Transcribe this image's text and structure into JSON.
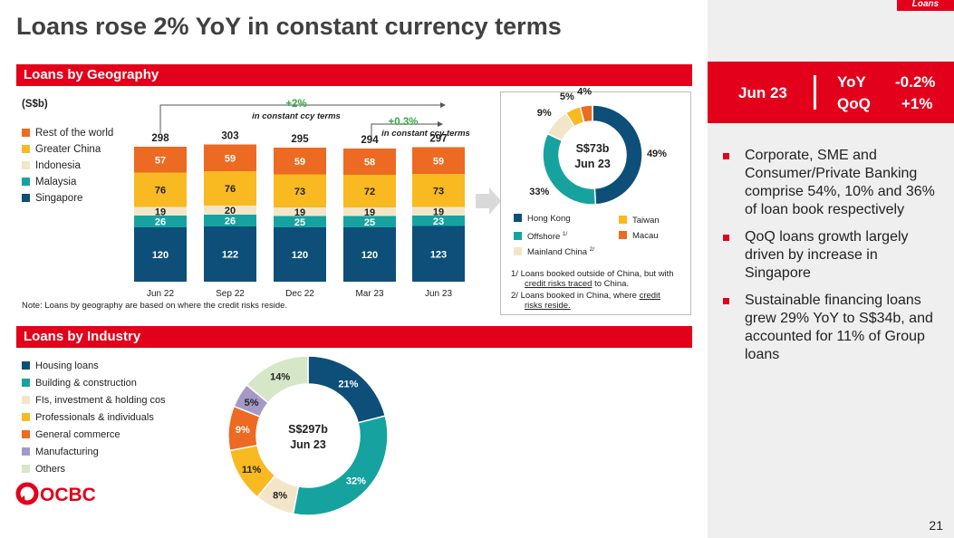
{
  "page": {
    "title": "Loans rose 2% YoY in constant currency terms",
    "tag": "Loans",
    "page_number": "21"
  },
  "geo": {
    "section_title": "Loans by Geography",
    "unit": "(S$b)",
    "note": "Note: Loans by geography are based on where the credit risks reside.",
    "growth_yoy": {
      "pct": "+2%",
      "text": "in constant ccy terms"
    },
    "growth_qoq": {
      "pct": "+0.3%",
      "text": "in constant ccy terms"
    },
    "donut_center": {
      "amount": "S$73b",
      "date": "Jun 23"
    },
    "donut_legend": {
      "hk": "Hong Kong",
      "taiwan": "Taiwan",
      "offshore": "Offshore",
      "offshore_sup": "1/",
      "macau": "Macau",
      "mainland": "Mainland China",
      "mainland_sup": "2/"
    },
    "footnote1": {
      "num": "1/",
      "l1": "Loans booked outside of China, but with",
      "l2u": "credit risks traced",
      "l2r": " to China."
    },
    "footnote2": {
      "num": "2/",
      "l1": "Loans booked in China, where ",
      "l1u": "credit",
      "l2u": "risks reside."
    }
  },
  "industry": {
    "section_title": "Loans by Industry",
    "donut_center": {
      "amount": "S$297b",
      "date": "Jun 23"
    }
  },
  "kpi": {
    "date": "Jun 23",
    "yoy_label": "YoY",
    "yoy_value": "-0.2%",
    "qoq_label": "QoQ",
    "qoq_value": "+1%"
  },
  "bullets": [
    "Corporate, SME and Consumer/Private Banking comprise 54%, 10% and 36% of loan book respectively",
    "QoQ loans growth largely driven by increase in Singapore",
    "Sustainable financing loans grew 29% YoY to S$34b, and accounted for 11% of Group loans"
  ],
  "logo": {
    "text": "OCBC"
  },
  "colors": {
    "red": "#e3001b",
    "navy": "#0d4f78",
    "teal": "#16a3a0",
    "beige": "#f3e6c8",
    "yellow": "#f8b921",
    "orange": "#ec6a22",
    "purple": "#a59ac7",
    "lightgreen": "#d6e7c8"
  },
  "chart_data": [
    {
      "type": "bar",
      "stacked": true,
      "title": "Loans by Geography",
      "ylabel": "(S$b)",
      "categories": [
        "Jun 22",
        "Sep 22",
        "Dec 22",
        "Mar 23",
        "Jun 23"
      ],
      "totals": [
        298,
        303,
        295,
        294,
        297
      ],
      "series": [
        {
          "name": "Singapore",
          "color": "#0d4f78",
          "values": [
            120,
            122,
            120,
            120,
            123
          ]
        },
        {
          "name": "Malaysia",
          "color": "#16a3a0",
          "values": [
            26,
            26,
            25,
            25,
            23
          ]
        },
        {
          "name": "Indonesia",
          "color": "#f3e6c8",
          "values": [
            19,
            20,
            19,
            19,
            19
          ]
        },
        {
          "name": "Greater China",
          "color": "#f8b921",
          "values": [
            76,
            76,
            73,
            72,
            73
          ]
        },
        {
          "name": "Rest of the world",
          "color": "#ec6a22",
          "values": [
            57,
            59,
            59,
            58,
            59
          ]
        }
      ],
      "legend_order": [
        "Rest of the world",
        "Greater China",
        "Indonesia",
        "Malaysia",
        "Singapore"
      ],
      "legend": "top-left"
    },
    {
      "type": "pie",
      "donut": true,
      "slices": [
        {
          "name": "Hong Kong",
          "value": 49,
          "label": "49%",
          "color": "#0d4f78"
        },
        {
          "name": "Offshore",
          "value": 33,
          "label": "33%",
          "color": "#16a3a0"
        },
        {
          "name": "Mainland China",
          "value": 9,
          "label": "9%",
          "color": "#f3e6c8"
        },
        {
          "name": "Taiwan",
          "value": 5,
          "label": "5%",
          "color": "#f8b921"
        },
        {
          "name": "Macau",
          "value": 4,
          "label": "4%",
          "color": "#ec6a22"
        }
      ]
    },
    {
      "type": "pie",
      "donut": true,
      "title": "Loans by Industry",
      "slices": [
        {
          "name": "Housing loans",
          "value": 21,
          "label": "21%",
          "color": "#0d4f78"
        },
        {
          "name": "Building & construction",
          "value": 32,
          "label": "32%",
          "color": "#16a3a0"
        },
        {
          "name": "FIs, investment & holding cos",
          "value": 8,
          "label": "8%",
          "color": "#f3e6c8"
        },
        {
          "name": "Professionals & individuals",
          "value": 11,
          "label": "11%",
          "color": "#f8b921"
        },
        {
          "name": "General commerce",
          "value": 9,
          "label": "9%",
          "color": "#ec6a22"
        },
        {
          "name": "Manufacturing",
          "value": 5,
          "label": "5%",
          "color": "#a59ac7"
        },
        {
          "name": "Others",
          "value": 14,
          "label": "14%",
          "color": "#d6e7c8"
        }
      ],
      "legend": "left"
    }
  ]
}
